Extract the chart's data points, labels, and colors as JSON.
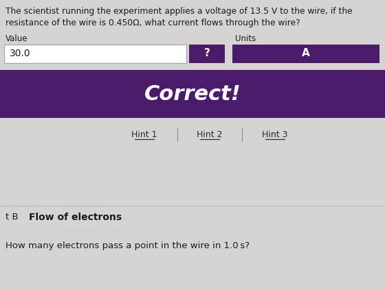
{
  "bg_color": "#d6d3d3",
  "title_line1": "The scientist running the experiment applies a voltage of 13.5 V to the wire, if the",
  "title_line2": "resistance of the wire is 0.450Ω, what current flows through the wire?",
  "value_label": "Value",
  "units_label": "Units",
  "value_text": "30.0",
  "question_mark": "?",
  "units_text": "A",
  "correct_text": "Correct!",
  "correct_bg": "#4a1a6b",
  "hint1": "Hint 1",
  "hint2": "Hint 2",
  "hint3": "Hint 3",
  "part_b_prefix": "t B",
  "part_b_title": "Flow of electrons",
  "bottom_question": "How many electrons pass a point in the wire in 1.0 s?",
  "input_box_color": "#ffffff",
  "question_btn_color": "#4a1a6b",
  "units_btn_color": "#4a1a6b",
  "text_color": "#1a1a1a",
  "hint_color": "#2a2a2a",
  "separator_color": "#aaaaaa"
}
